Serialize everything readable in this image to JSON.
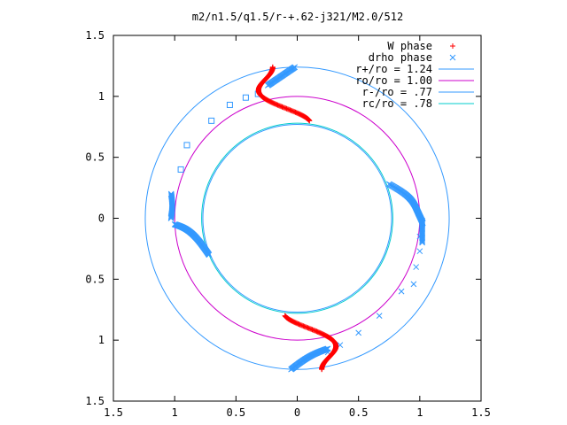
{
  "chart_data": {
    "type": "scatter",
    "title": "m2/n1.5/q1.5/r-+.62-j321/M2.0/512",
    "xlabel": "",
    "ylabel": "",
    "xlim": [
      -1.5,
      1.5
    ],
    "ylim": [
      -1.5,
      1.5
    ],
    "x_tick_labels": [
      "1.5",
      "1",
      "0.5",
      "0",
      "0.5",
      "1",
      "1.5"
    ],
    "x_tick_values": [
      -1.5,
      -1,
      -0.5,
      0,
      0.5,
      1,
      1.5
    ],
    "y_tick_labels": [
      "1.5",
      "1",
      "0.5",
      "0",
      "0.5",
      "1",
      "1.5"
    ],
    "y_tick_values": [
      1.5,
      1,
      0.5,
      0,
      -0.5,
      -1,
      -1.5
    ],
    "grid": false,
    "legend_position": "top-right",
    "series": [
      {
        "name": "W phase",
        "marker": "+",
        "color": "#ff0000",
        "arms": [
          {
            "angle": 90,
            "x_of_y": "wave",
            "y_range": [
              0.8,
              1.24
            ]
          },
          {
            "angle": 270,
            "x_of_y": "wave",
            "y_range": [
              -1.24,
              -0.8
            ]
          }
        ]
      },
      {
        "name": "drho phase",
        "marker": "x",
        "color": "#3399ff",
        "arms": [
          {
            "angle": 0,
            "r_range": [
              0.75,
              1.05
            ]
          },
          {
            "angle": 180,
            "r_range": [
              0.75,
              1.05
            ]
          }
        ],
        "sparse_points": [
          [
            -0.95,
            0.4
          ],
          [
            -0.9,
            0.6
          ],
          [
            -0.7,
            0.8
          ],
          [
            -0.55,
            0.93
          ],
          [
            -0.42,
            0.99
          ],
          [
            -0.32,
            1.02
          ],
          [
            1.0,
            -0.15
          ],
          [
            1.0,
            -0.27
          ],
          [
            0.97,
            -0.4
          ],
          [
            0.95,
            -0.54
          ],
          [
            0.85,
            -0.6
          ],
          [
            0.67,
            -0.8
          ],
          [
            0.5,
            -0.94
          ],
          [
            0.35,
            -1.04
          ],
          [
            0.25,
            -1.1
          ]
        ]
      },
      {
        "name": "r+/ro = 1.24",
        "type": "circle",
        "radius": 1.24,
        "color": "#3399ff"
      },
      {
        "name": "ro/ro = 1.00",
        "type": "circle",
        "radius": 1.0,
        "color": "#cc00cc"
      },
      {
        "name": "r-/ro = .77",
        "type": "circle",
        "radius": 0.77,
        "color": "#3399ff"
      },
      {
        "name": "rc/ro = .78",
        "type": "circle",
        "radius": 0.78,
        "color": "#00cccc"
      }
    ]
  }
}
